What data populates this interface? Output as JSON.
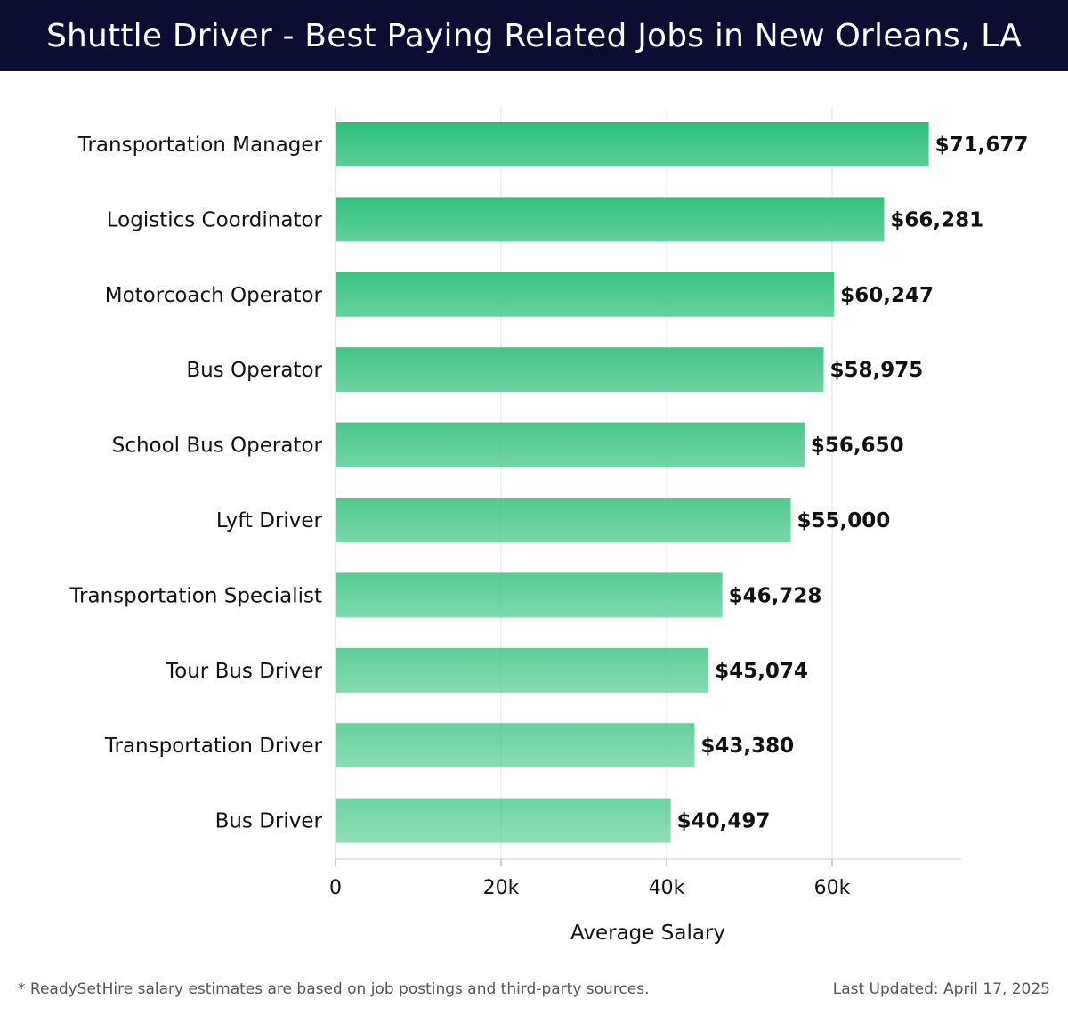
{
  "header": {
    "title": "Shuttle Driver - Best Paying Related Jobs in New Orleans, LA"
  },
  "chart_data": {
    "type": "bar",
    "orientation": "horizontal",
    "categories": [
      "Transportation Manager",
      "Logistics Coordinator",
      "Motorcoach Operator",
      "Bus Operator",
      "School Bus Operator",
      "Lyft Driver",
      "Transportation Specialist",
      "Tour Bus Driver",
      "Transportation Driver",
      "Bus Driver"
    ],
    "values": [
      71677,
      66281,
      60247,
      58975,
      56650,
      55000,
      46728,
      45074,
      43380,
      40497
    ],
    "value_labels": [
      "$71,677",
      "$66,281",
      "$60,247",
      "$58,975",
      "$56,650",
      "$55,000",
      "$46,728",
      "$45,074",
      "$43,380",
      "$40,497"
    ],
    "xlabel": "Average Salary",
    "ylabel": "",
    "xlim": [
      0,
      75000
    ],
    "xticks": [
      0,
      20000,
      40000,
      60000
    ],
    "xtick_labels": [
      "0",
      "20k",
      "40k",
      "60k"
    ],
    "grid": "vertical",
    "colors": {
      "bar_top": "#2bbf77",
      "bar_bottom": "#5ccf98",
      "grid": "#e3e3e3"
    }
  },
  "footer": {
    "note": "* ReadySetHire salary estimates are based on job postings and third-party sources.",
    "updated": "Last Updated: April 17, 2025"
  }
}
